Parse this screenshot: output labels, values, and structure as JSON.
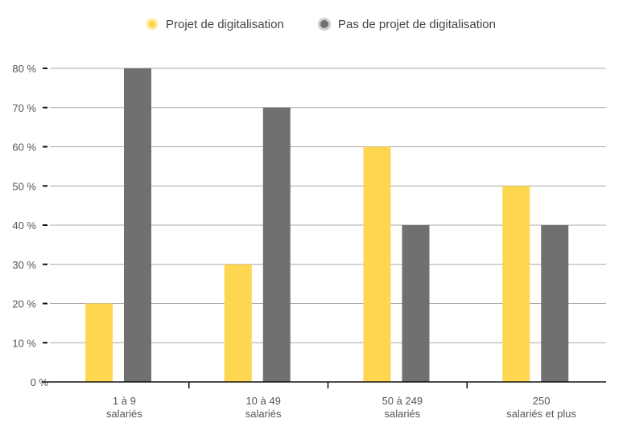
{
  "chart_data": {
    "type": "bar",
    "title": "",
    "xlabel": "",
    "ylabel": "",
    "categories": [
      [
        "1 à 9",
        "salariés"
      ],
      [
        "10 à 49",
        "salariés"
      ],
      [
        "50 à 249",
        "salariés"
      ],
      [
        "250",
        "salariés et plus"
      ]
    ],
    "series": [
      {
        "name": "Projet de digitalisation",
        "color": "#FFD64F",
        "values": [
          20,
          30,
          60,
          50
        ]
      },
      {
        "name": "Pas de projet de digitalisation",
        "color": "#707071",
        "values": [
          80,
          70,
          40,
          40
        ]
      }
    ],
    "ylim": [
      0,
      80
    ],
    "yticks": [
      0,
      10,
      20,
      30,
      40,
      50,
      60,
      70,
      80
    ],
    "ytick_labels": [
      "0 %",
      "10 %",
      "20 %",
      "30 %",
      "40 %",
      "50 %",
      "60 %",
      "70 %",
      "80 %"
    ],
    "grid": true,
    "legend_position": "top-center"
  }
}
